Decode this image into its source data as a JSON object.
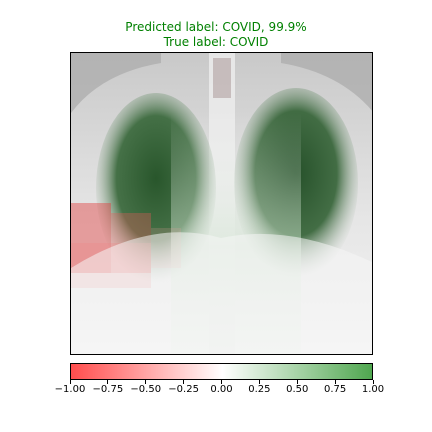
{
  "title": {
    "predicted": "Predicted label: COVID, 99.9%",
    "true": "True label: COVID",
    "color": "#008000"
  },
  "image": {
    "description_icon": "chest-xray-image",
    "overlay_negative_color": "#ff0000",
    "overlay_positive_color": "#008000"
  },
  "colorbar": {
    "min": -1.0,
    "max": 1.0,
    "ticks": [
      "−1.00",
      "−0.75",
      "−0.50",
      "−0.25",
      "0.00",
      "0.25",
      "0.50",
      "0.75",
      "1.00"
    ],
    "negative_color": "#ff4d4d",
    "center_color": "#ffffff",
    "positive_color": "#4da64d"
  }
}
